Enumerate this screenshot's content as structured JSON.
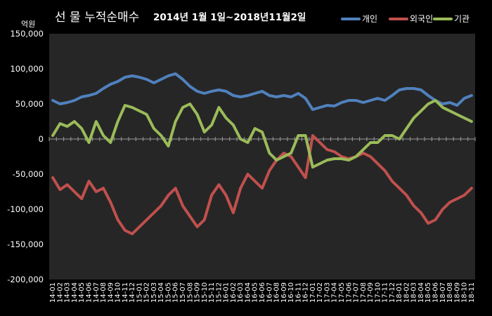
{
  "chart_data": {
    "type": "line",
    "title": "선 물 누적순매수",
    "subtitle": "2014년 1월 1일~2018년11월2일",
    "unit_label": "억원",
    "ylim": [
      -200000,
      150000
    ],
    "y_ticks": [
      150000,
      100000,
      50000,
      0,
      -50000,
      -100000,
      -150000,
      -200000
    ],
    "y_tick_labels": [
      "150,000",
      "100,000",
      "50,000",
      "0",
      "-50,000",
      "-100,000",
      "-150,000",
      "-200,000"
    ],
    "categories": [
      "14-01",
      "14-02",
      "14-03",
      "14-04",
      "14-05",
      "14-06",
      "14-07",
      "14-08",
      "14-09",
      "14-10",
      "14-11",
      "14-12",
      "15-01",
      "15-02",
      "15-03",
      "15-04",
      "15-05",
      "15-06",
      "15-07",
      "15-08",
      "15-09",
      "15-10",
      "15-11",
      "15-12",
      "16-01",
      "16-02",
      "16-03",
      "16-04",
      "16-05",
      "16-06",
      "16-07",
      "16-08",
      "16-09",
      "16-10",
      "16-11",
      "16-12",
      "17-01",
      "17-02",
      "17-03",
      "17-04",
      "17-05",
      "17-06",
      "17-07",
      "17-08",
      "17-09",
      "17-10",
      "17-11",
      "17-12",
      "18-01",
      "18-02",
      "18-03",
      "18-04",
      "18-05",
      "18-06",
      "18-07",
      "18-08",
      "18-09",
      "18-10",
      "18-11"
    ],
    "legend_position": "top-right",
    "grid": false,
    "series": [
      {
        "name": "개인",
        "color": "#4f81bd",
        "values": [
          55000,
          50000,
          52000,
          55000,
          60000,
          62000,
          65000,
          72000,
          78000,
          82000,
          88000,
          90000,
          88000,
          85000,
          80000,
          85000,
          90000,
          93000,
          85000,
          75000,
          68000,
          65000,
          68000,
          70000,
          68000,
          62000,
          60000,
          62000,
          65000,
          68000,
          62000,
          60000,
          62000,
          60000,
          65000,
          58000,
          42000,
          45000,
          48000,
          47000,
          52000,
          55000,
          55000,
          52000,
          55000,
          58000,
          55000,
          62000,
          70000,
          72000,
          72000,
          70000,
          62000,
          55000,
          50000,
          52000,
          48000,
          58000,
          62000
        ]
      },
      {
        "name": "외국인",
        "color": "#c0504d",
        "values": [
          -55000,
          -72000,
          -65000,
          -75000,
          -85000,
          -60000,
          -75000,
          -70000,
          -90000,
          -115000,
          -130000,
          -135000,
          -125000,
          -115000,
          -105000,
          -95000,
          -80000,
          -70000,
          -95000,
          -110000,
          -125000,
          -115000,
          -80000,
          -65000,
          -80000,
          -105000,
          -70000,
          -50000,
          -60000,
          -70000,
          -45000,
          -30000,
          -20000,
          -25000,
          -40000,
          -55000,
          5000,
          -5000,
          -15000,
          -18000,
          -25000,
          -28000,
          -25000,
          -20000,
          -25000,
          -35000,
          -45000,
          -60000,
          -70000,
          -80000,
          -95000,
          -105000,
          -120000,
          -115000,
          -100000,
          -90000,
          -85000,
          -80000,
          -70000
        ]
      },
      {
        "name": "기관",
        "color": "#9bbb59",
        "values": [
          5000,
          22000,
          18000,
          25000,
          15000,
          -5000,
          25000,
          5000,
          -5000,
          25000,
          48000,
          45000,
          40000,
          35000,
          15000,
          5000,
          -10000,
          25000,
          45000,
          50000,
          35000,
          10000,
          20000,
          45000,
          30000,
          20000,
          0,
          -5000,
          15000,
          10000,
          -20000,
          -30000,
          -25000,
          -20000,
          5000,
          5000,
          -40000,
          -35000,
          -30000,
          -28000,
          -28000,
          -30000,
          -25000,
          -15000,
          -5000,
          -5000,
          5000,
          5000,
          0,
          15000,
          30000,
          40000,
          50000,
          55000,
          45000,
          40000,
          35000,
          30000,
          25000
        ]
      }
    ]
  }
}
